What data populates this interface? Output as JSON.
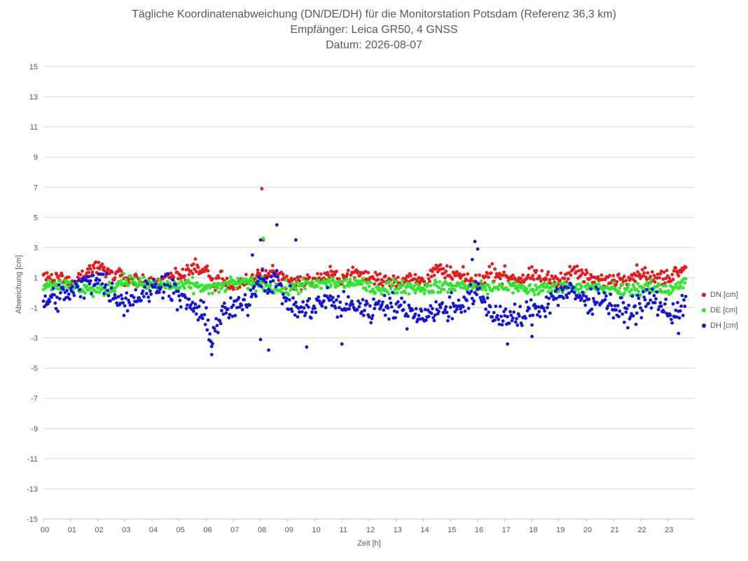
{
  "chart_data": {
    "type": "scatter",
    "title_lines": [
      "Tägliche Koordinatenabweichung (DN/DE/DH) für die Monitorstation Potsdam (Referenz 36,3 km)",
      "Empfänger: Leica GR50, 4 GNSS",
      "Datum: 2026-08-07"
    ],
    "xlabel": "Zeit [h]",
    "ylabel": "Abweichung [cm]",
    "xlim": [
      0,
      24
    ],
    "ylim": [
      -15,
      15
    ],
    "x_ticks": [
      "00",
      "01",
      "02",
      "03",
      "04",
      "05",
      "06",
      "07",
      "08",
      "09",
      "10",
      "11",
      "12",
      "13",
      "14",
      "15",
      "16",
      "17",
      "18",
      "19",
      "20",
      "21",
      "22",
      "23"
    ],
    "y_ticks": [
      15,
      13,
      11,
      9,
      7,
      5,
      3,
      1,
      -1,
      -3,
      -5,
      -7,
      -9,
      -11,
      -13,
      -15
    ],
    "legend_position": "right",
    "sample_interval_min": 2,
    "series": [
      {
        "name": "DN [cm]",
        "color": "#e41a1c",
        "anchors": [
          [
            0,
            0.9
          ],
          [
            0.5,
            1.0
          ],
          [
            1,
            0.8
          ],
          [
            1.5,
            1.2
          ],
          [
            2,
            1.8
          ],
          [
            2.5,
            1.3
          ],
          [
            3,
            1.0
          ],
          [
            3.5,
            0.8
          ],
          [
            4,
            0.7
          ],
          [
            4.5,
            0.9
          ],
          [
            5,
            1.2
          ],
          [
            5.5,
            1.6
          ],
          [
            6,
            1.5
          ],
          [
            6.3,
            0.5
          ],
          [
            6.5,
            1.0
          ],
          [
            7,
            0.4
          ],
          [
            7.5,
            0.6
          ],
          [
            8,
            1.2
          ],
          [
            8.5,
            1.3
          ],
          [
            9,
            0.8
          ],
          [
            9.5,
            0.7
          ],
          [
            10,
            0.8
          ],
          [
            10.5,
            1.2
          ],
          [
            11,
            1.0
          ],
          [
            11.5,
            1.3
          ],
          [
            12,
            1.0
          ],
          [
            12.5,
            0.9
          ],
          [
            13,
            0.8
          ],
          [
            13.5,
            0.9
          ],
          [
            14,
            0.8
          ],
          [
            14.5,
            1.5
          ],
          [
            15,
            1.2
          ],
          [
            15.5,
            1.0
          ],
          [
            16,
            0.6
          ],
          [
            16.5,
            1.4
          ],
          [
            17,
            1.1
          ],
          [
            17.5,
            0.9
          ],
          [
            18,
            1.1
          ],
          [
            18.5,
            0.9
          ],
          [
            19,
            0.8
          ],
          [
            19.5,
            1.5
          ],
          [
            20,
            1.0
          ],
          [
            20.5,
            0.8
          ],
          [
            21,
            0.9
          ],
          [
            21.5,
            1.0
          ],
          [
            22,
            1.4
          ],
          [
            22.5,
            0.9
          ],
          [
            23,
            1.0
          ],
          [
            23.5,
            1.7
          ]
        ],
        "noise": 0.35,
        "outliers": [
          [
            8.05,
            6.9
          ],
          [
            8.1,
            3.5
          ],
          [
            8.45,
            1.8
          ],
          [
            7.9,
            1.5
          ]
        ]
      },
      {
        "name": "DE [cm]",
        "color": "#2ee62e",
        "anchors": [
          [
            0,
            0.5
          ],
          [
            0.5,
            0.6
          ],
          [
            1,
            0.4
          ],
          [
            1.5,
            0.3
          ],
          [
            2,
            0.1
          ],
          [
            2.5,
            0.3
          ],
          [
            3,
            0.9
          ],
          [
            3.5,
            0.6
          ],
          [
            4,
            0.5
          ],
          [
            4.5,
            0.5
          ],
          [
            5,
            0.4
          ],
          [
            5.5,
            0.5
          ],
          [
            6,
            0.3
          ],
          [
            6.5,
            0.3
          ],
          [
            7,
            0.7
          ],
          [
            7.5,
            0.6
          ],
          [
            8,
            0.6
          ],
          [
            8.5,
            0.3
          ],
          [
            9,
            0.2
          ],
          [
            9.5,
            0.5
          ],
          [
            10,
            0.5
          ],
          [
            10.5,
            0.7
          ],
          [
            11,
            0.6
          ],
          [
            11.5,
            0.7
          ],
          [
            12,
            0.3
          ],
          [
            12.5,
            0.3
          ],
          [
            13,
            0.4
          ],
          [
            13.5,
            0.4
          ],
          [
            14,
            0.3
          ],
          [
            14.5,
            0.4
          ],
          [
            15,
            0.4
          ],
          [
            15.5,
            0.5
          ],
          [
            16,
            0.4
          ],
          [
            16.5,
            0.3
          ],
          [
            17,
            0.4
          ],
          [
            17.5,
            0.3
          ],
          [
            18,
            0.2
          ],
          [
            18.5,
            0.3
          ],
          [
            19,
            0.4
          ],
          [
            19.5,
            0.4
          ],
          [
            20,
            0.3
          ],
          [
            20.5,
            0.3
          ],
          [
            21,
            0.2
          ],
          [
            21.5,
            0.2
          ],
          [
            22,
            0.3
          ],
          [
            22.5,
            0.3
          ],
          [
            23,
            0.2
          ],
          [
            23.5,
            0.6
          ]
        ],
        "noise": 0.3,
        "outliers": [
          [
            8.1,
            3.6
          ],
          [
            9.3,
            -0.8
          ],
          [
            7.7,
            1.0
          ]
        ]
      },
      {
        "name": "DH [cm]",
        "color": "#1515d6",
        "anchors": [
          [
            0,
            -0.6
          ],
          [
            0.5,
            -0.3
          ],
          [
            1,
            0.0
          ],
          [
            1.5,
            0.5
          ],
          [
            2,
            1.2
          ],
          [
            2.5,
            0.0
          ],
          [
            3,
            -0.6
          ],
          [
            3.5,
            -0.2
          ],
          [
            4,
            0.2
          ],
          [
            4.5,
            0.8
          ],
          [
            5,
            -0.4
          ],
          [
            5.5,
            -0.9
          ],
          [
            6,
            -1.8
          ],
          [
            6.2,
            -3.0
          ],
          [
            6.5,
            -1.6
          ],
          [
            7,
            -1.0
          ],
          [
            7.5,
            -0.8
          ],
          [
            8,
            1.2
          ],
          [
            8.2,
            0.6
          ],
          [
            8.5,
            1.0
          ],
          [
            9,
            -0.6
          ],
          [
            9.5,
            -1.2
          ],
          [
            10,
            -0.9
          ],
          [
            10.5,
            -0.4
          ],
          [
            11,
            -1.0
          ],
          [
            11.5,
            -0.8
          ],
          [
            12,
            -1.2
          ],
          [
            12.5,
            -0.6
          ],
          [
            13,
            -1.0
          ],
          [
            13.5,
            -1.3
          ],
          [
            14,
            -1.4
          ],
          [
            14.5,
            -1.2
          ],
          [
            15,
            -1.0
          ],
          [
            15.5,
            -0.6
          ],
          [
            16,
            0.0
          ],
          [
            16.5,
            -1.3
          ],
          [
            17,
            -1.6
          ],
          [
            17.5,
            -1.8
          ],
          [
            18,
            -1.2
          ],
          [
            18.5,
            -0.8
          ],
          [
            19,
            0.0
          ],
          [
            19.5,
            0.0
          ],
          [
            20,
            -0.6
          ],
          [
            20.5,
            -0.2
          ],
          [
            21,
            -1.0
          ],
          [
            21.5,
            -1.4
          ],
          [
            22,
            -0.8
          ],
          [
            22.5,
            -0.4
          ],
          [
            23,
            -1.4
          ],
          [
            23.5,
            -1.0
          ]
        ],
        "noise": 0.6,
        "outliers": [
          [
            8.6,
            4.5
          ],
          [
            8.0,
            3.5
          ],
          [
            9.3,
            3.5
          ],
          [
            7.7,
            2.5
          ],
          [
            15.9,
            3.4
          ],
          [
            16.0,
            2.9
          ],
          [
            15.8,
            2.2
          ],
          [
            8.3,
            -3.8
          ],
          [
            6.2,
            -4.1
          ],
          [
            9.7,
            -3.6
          ],
          [
            11.0,
            -3.4
          ],
          [
            17.1,
            -3.4
          ],
          [
            18.0,
            -2.9
          ],
          [
            23.4,
            -2.7
          ],
          [
            8.0,
            -3.1
          ]
        ]
      }
    ]
  }
}
